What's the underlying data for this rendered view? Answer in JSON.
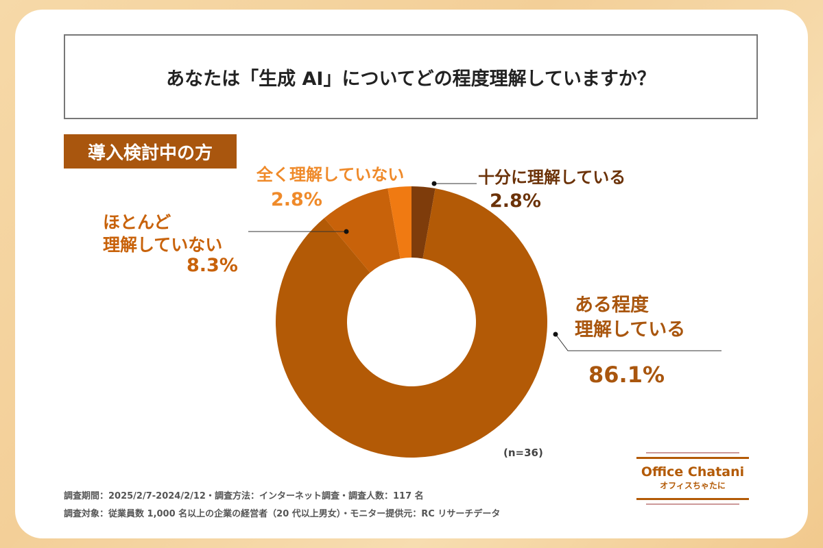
{
  "title": "あなたは「生成 AI」についてどの程度理解していますか？",
  "badge": "導入検討中の方",
  "chart_data": {
    "type": "pie",
    "donut": true,
    "categories": [
      "十分に理解している",
      "ある程度理解している",
      "ほとんど理解していない",
      "全く理解していない"
    ],
    "values": [
      2.8,
      86.1,
      8.3,
      2.8
    ],
    "value_labels": [
      "2.8%",
      "86.1%",
      "8.3%",
      "2.8%"
    ],
    "label_lines": [
      [
        "十分に理解している"
      ],
      [
        "ある程度",
        "理解している"
      ],
      [
        "ほとんど",
        "理解していない"
      ],
      [
        "全く理解していない"
      ]
    ],
    "colors": [
      "#7e3c0b",
      "#b35a06",
      "#c8620a",
      "#f07a12"
    ],
    "sample": "(n=36)"
  },
  "footer": {
    "line1": "調査期間：2025/2/7-2024/2/12・調査方法：インターネット調査・調査人数：117 名",
    "line2": "調査対象：従業員数 1,000 名以上の企業の経営者（20 代以上男女）・モニター提供元：RC リサーチデータ"
  },
  "logo": {
    "name": "Office Chatani",
    "kana": "オフィスちゃたに"
  }
}
